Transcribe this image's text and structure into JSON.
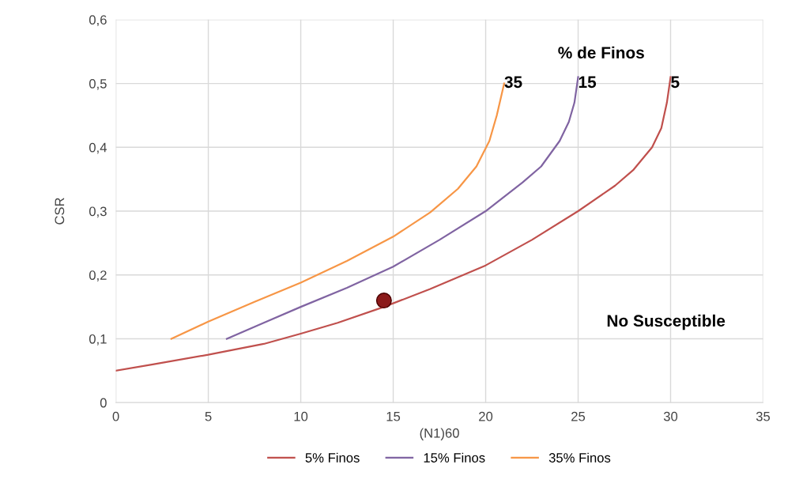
{
  "chart_data": {
    "type": "line",
    "xlabel": "(N1)60",
    "ylabel": "CSR",
    "series": [
      {
        "name": "5% Finos",
        "color": "#c0504d",
        "x": [
          0,
          2,
          5,
          8,
          10,
          12,
          14.5,
          17,
          20,
          22.5,
          25,
          27,
          28,
          29,
          29.5,
          29.8,
          30
        ],
        "values": [
          0.05,
          0.06,
          0.075,
          0.092,
          0.108,
          0.125,
          0.15,
          0.178,
          0.215,
          0.255,
          0.3,
          0.34,
          0.365,
          0.4,
          0.43,
          0.47,
          0.51
        ]
      },
      {
        "name": "15% Finos",
        "color": "#8064a2",
        "x": [
          6,
          8,
          10,
          12.5,
          15,
          17.5,
          20,
          22,
          23,
          24,
          24.5,
          24.8,
          25
        ],
        "values": [
          0.1,
          0.125,
          0.15,
          0.18,
          0.213,
          0.255,
          0.3,
          0.345,
          0.37,
          0.41,
          0.44,
          0.47,
          0.51
        ]
      },
      {
        "name": "35% Finos",
        "color": "#f79646",
        "x": [
          3,
          5,
          7.5,
          10,
          12.5,
          15,
          17,
          18.5,
          19.5,
          20.2,
          20.6,
          21
        ],
        "values": [
          0.1,
          0.127,
          0.158,
          0.188,
          0.222,
          0.26,
          0.298,
          0.335,
          0.37,
          0.41,
          0.45,
          0.5
        ]
      },
      {
        "type": "scatter",
        "color": "#8b1a1a",
        "x": [
          14.5
        ],
        "values": [
          0.16
        ]
      }
    ],
    "annotations": [
      "% de Finos",
      {
        "text": "35",
        "x": 21,
        "y": 0.5
      },
      {
        "text": "15",
        "x": 25,
        "y": 0.5
      },
      {
        "text": "5",
        "x": 30,
        "y": 0.5
      },
      "No Susceptible"
    ],
    "xlim": [
      0,
      35
    ],
    "xticks": [
      0,
      5,
      10,
      15,
      20,
      25,
      30,
      35
    ],
    "ylim": [
      0,
      0.6
    ],
    "yticks": [
      {
        "value": 0,
        "label": "0"
      },
      {
        "value": 0.1,
        "label": "0,1"
      },
      {
        "value": 0.2,
        "label": "0,2"
      },
      {
        "value": 0.3,
        "label": "0,3"
      },
      {
        "value": 0.4,
        "label": "0,4"
      },
      {
        "value": 0.5,
        "label": "0,5"
      },
      {
        "value": 0.6,
        "label": "0,6"
      }
    ],
    "grid": true,
    "legend": "bottom"
  }
}
